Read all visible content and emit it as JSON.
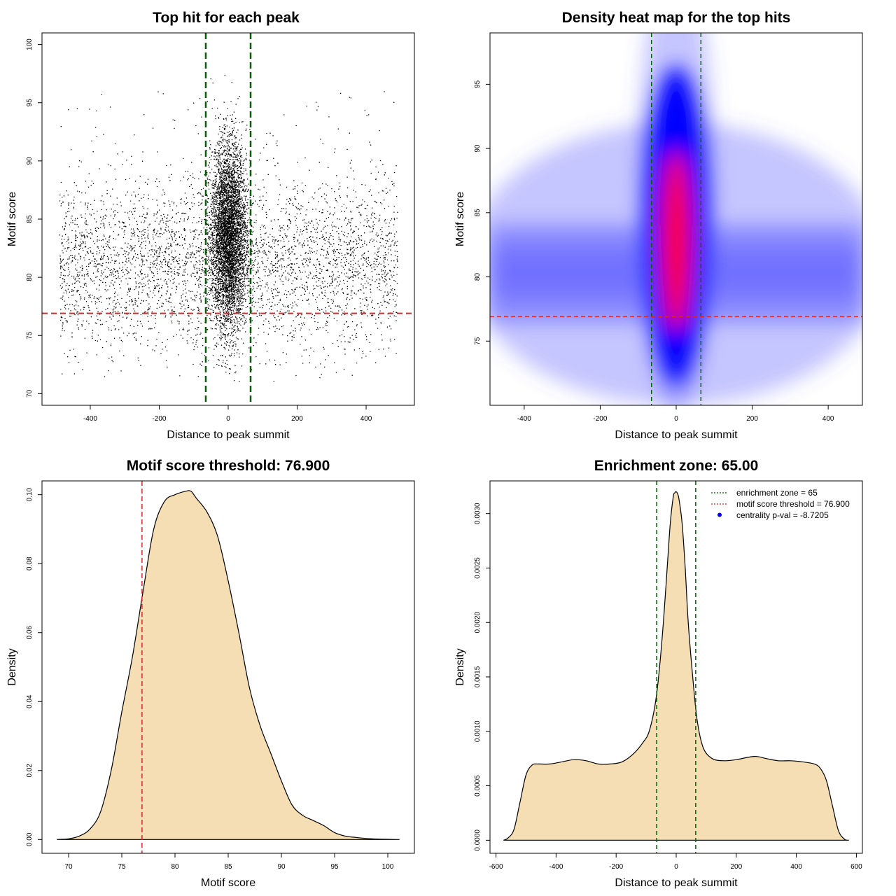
{
  "chart_data": [
    {
      "id": "scatter",
      "type": "scatter",
      "title": "Top hit for each peak",
      "xlabel": "Distance to peak summit",
      "ylabel": "Motif score",
      "xlim": [
        -540,
        540
      ],
      "ylim": [
        69,
        101
      ],
      "xticks": [
        -400,
        -200,
        0,
        200,
        400
      ],
      "yticks": [
        70,
        75,
        80,
        85,
        90,
        95,
        100
      ],
      "vlines": [
        -65,
        65
      ],
      "hline": 76.9,
      "point_color": "#000000",
      "vline_color": "#006400",
      "hline_color": "#d62728"
    },
    {
      "id": "heatmap",
      "type": "heatmap",
      "title": "Density heat map for the top hits",
      "xlabel": "Distance to peak summit",
      "ylabel": "Motif score",
      "xlim": [
        -490,
        490
      ],
      "ylim": [
        70,
        99
      ],
      "xticks": [
        -400,
        -200,
        0,
        200,
        400
      ],
      "yticks": [
        75,
        80,
        85,
        90,
        95
      ],
      "vlines": [
        -65,
        65
      ],
      "hline": 76.9,
      "colors": [
        "#ffffff",
        "#5a5aff",
        "#0000ff",
        "#ff0000"
      ],
      "vline_color": "#006400",
      "hline_color": "#d62728"
    },
    {
      "id": "score-density",
      "type": "area",
      "title": "Motif score threshold: 76.900",
      "xlabel": "Motif score",
      "ylabel": "Density",
      "xlim": [
        67.5,
        102.5
      ],
      "ylim": [
        -0.004,
        0.104
      ],
      "xticks": [
        70,
        75,
        80,
        85,
        90,
        95,
        100
      ],
      "yticks": [
        0.0,
        0.02,
        0.04,
        0.06,
        0.08,
        0.1
      ],
      "ytick_labels": [
        "0.00",
        "0.02",
        "0.04",
        "0.06",
        "0.08",
        "0.10"
      ],
      "vline": 76.9,
      "vline_color": "#d62728",
      "fill": "#f5deb3",
      "x": [
        68.9,
        70,
        71,
        72,
        73,
        74,
        75,
        76,
        77,
        78,
        79,
        80,
        81,
        81.5,
        82,
        83,
        84,
        85,
        86,
        87,
        88,
        89,
        90,
        91,
        92,
        93,
        94,
        95,
        96,
        97,
        98,
        99,
        100,
        101.1
      ],
      "y": [
        0.0,
        0.0002,
        0.001,
        0.003,
        0.008,
        0.02,
        0.037,
        0.053,
        0.072,
        0.09,
        0.098,
        0.1,
        0.101,
        0.101,
        0.099,
        0.095,
        0.088,
        0.075,
        0.06,
        0.044,
        0.033,
        0.025,
        0.017,
        0.01,
        0.007,
        0.0055,
        0.004,
        0.002,
        0.001,
        0.0006,
        0.0003,
        0.00015,
        5e-05,
        0.0
      ]
    },
    {
      "id": "distance-density",
      "type": "area",
      "title": "Enrichment zone: 65.00",
      "xlabel": "Distance to peak summit",
      "ylabel": "Density",
      "xlim": [
        -620,
        620
      ],
      "ylim": [
        -0.00012,
        0.0033
      ],
      "xticks": [
        -600,
        -400,
        -200,
        0,
        200,
        400,
        600
      ],
      "yticks": [
        0.0,
        0.0005,
        0.001,
        0.0015,
        0.002,
        0.0025,
        0.003
      ],
      "ytick_labels": [
        "0.0000",
        "0.0005",
        "0.0010",
        "0.0015",
        "0.0020",
        "0.0025",
        "0.0030"
      ],
      "vlines": [
        -65,
        65
      ],
      "vline_color": "#006400",
      "fill": "#f5deb3",
      "x": [
        -575,
        -560,
        -540,
        -520,
        -500,
        -480,
        -460,
        -420,
        -380,
        -340,
        -300,
        -260,
        -220,
        -180,
        -140,
        -110,
        -90,
        -70,
        -55,
        -40,
        -30,
        -20,
        -10,
        -5,
        0,
        5,
        10,
        20,
        30,
        40,
        55,
        70,
        90,
        120,
        160,
        200,
        260,
        300,
        340,
        380,
        420,
        460,
        480,
        500,
        520,
        540,
        560,
        575
      ],
      "y": [
        0,
        2e-05,
        0.0001,
        0.00035,
        0.0006,
        0.00069,
        0.0007,
        0.0007,
        0.00072,
        0.00074,
        0.00073,
        0.0007,
        0.0007,
        0.00072,
        0.0008,
        0.0009,
        0.001,
        0.00125,
        0.0016,
        0.0021,
        0.0025,
        0.0029,
        0.00315,
        0.00319,
        0.0032,
        0.00318,
        0.00312,
        0.0029,
        0.0025,
        0.002,
        0.0015,
        0.0011,
        0.00085,
        0.00075,
        0.00073,
        0.00074,
        0.00077,
        0.00075,
        0.00073,
        0.00073,
        0.00072,
        0.0007,
        0.00066,
        0.00055,
        0.00032,
        9e-05,
        1e-05,
        0
      ],
      "legend": [
        {
          "label": "enrichment zone = 65",
          "style": "dotted",
          "color": "#006400"
        },
        {
          "label": "motif score threshold = 76.900",
          "style": "dotted",
          "color": "#d62728"
        },
        {
          "label": "centrality p-val = -8.7205",
          "style": "dot",
          "color": "#0000ff"
        }
      ]
    }
  ]
}
